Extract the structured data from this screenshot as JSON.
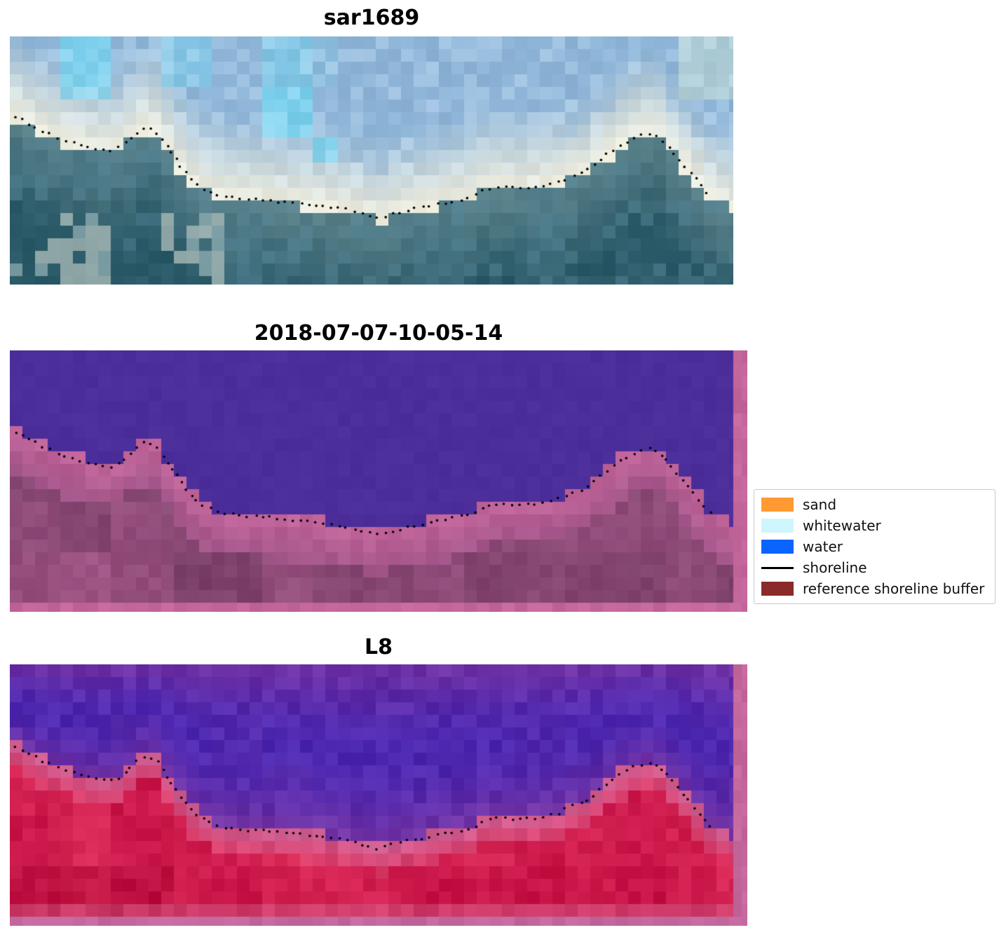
{
  "figure": {
    "background": "#ffffff",
    "panels": [
      {
        "id": "sar1689",
        "title": "sar1689",
        "colors": {
          "sky": "#8fb6d9",
          "cyan": "#74d6f2",
          "shore_band": "#f1efdf",
          "pale_green": "#d8ecd2",
          "water_shallow": "#6f949b",
          "water_deep": "#2c5b69",
          "water_mid": "#47788a",
          "light_patch": "#c7cfc6"
        }
      },
      {
        "id": "classified",
        "title": "2018-07-07-10-05-14",
        "colors": {
          "water_class": "#4c2e9b",
          "buffer_pink": "#c0649a",
          "buffer_mid": "#a3568a",
          "land_mid": "#96507f",
          "land_dark": "#7b4069",
          "light_corner": "#b86296",
          "frame": "#c4679c"
        }
      },
      {
        "id": "l8",
        "title": "L8",
        "colors": {
          "purple_top": "#7232a4",
          "blue_deep": "#4726b2",
          "purple_mid": "#5e2ba6",
          "purple_low": "#8c4ab0",
          "pink_band": "#d05f92",
          "pink_mid": "#da3a66",
          "red_mid": "#da2a58",
          "red_deep": "#c41145",
          "red_dark": "#b30a38",
          "bottom_pink": "#d4648f",
          "frame": "#c4679c"
        }
      }
    ],
    "legend": {
      "items": [
        {
          "label": "sand",
          "swatch": "patch",
          "color": "#ff9a33"
        },
        {
          "label": "whitewater",
          "swatch": "patch",
          "color": "#cdf6ff"
        },
        {
          "label": "water",
          "swatch": "patch",
          "color": "#0a64ff"
        },
        {
          "label": "shoreline",
          "swatch": "line",
          "color": "#000000"
        },
        {
          "label": "reference shoreline buffer",
          "swatch": "patch",
          "color": "#8b2a2a"
        }
      ]
    },
    "shoreline": [
      [
        0.0,
        0.31
      ],
      [
        0.01,
        0.325
      ],
      [
        0.04,
        0.375
      ],
      [
        0.065,
        0.405
      ],
      [
        0.09,
        0.43
      ],
      [
        0.115,
        0.455
      ],
      [
        0.14,
        0.46
      ],
      [
        0.155,
        0.445
      ],
      [
        0.17,
        0.4
      ],
      [
        0.185,
        0.368
      ],
      [
        0.2,
        0.372
      ],
      [
        0.215,
        0.43
      ],
      [
        0.235,
        0.52
      ],
      [
        0.255,
        0.59
      ],
      [
        0.275,
        0.628
      ],
      [
        0.3,
        0.648
      ],
      [
        0.33,
        0.658
      ],
      [
        0.36,
        0.663
      ],
      [
        0.395,
        0.672
      ],
      [
        0.43,
        0.682
      ],
      [
        0.465,
        0.698
      ],
      [
        0.495,
        0.718
      ],
      [
        0.51,
        0.733
      ],
      [
        0.525,
        0.718
      ],
      [
        0.55,
        0.7
      ],
      [
        0.58,
        0.685
      ],
      [
        0.61,
        0.666
      ],
      [
        0.64,
        0.65
      ],
      [
        0.655,
        0.616
      ],
      [
        0.68,
        0.61
      ],
      [
        0.705,
        0.614
      ],
      [
        0.73,
        0.608
      ],
      [
        0.755,
        0.594
      ],
      [
        0.775,
        0.566
      ],
      [
        0.795,
        0.548
      ],
      [
        0.815,
        0.5
      ],
      [
        0.835,
        0.455
      ],
      [
        0.855,
        0.418
      ],
      [
        0.875,
        0.395
      ],
      [
        0.89,
        0.388
      ],
      [
        0.905,
        0.428
      ],
      [
        0.92,
        0.478
      ],
      [
        0.935,
        0.528
      ],
      [
        0.95,
        0.582
      ],
      [
        0.965,
        0.632
      ],
      [
        0.978,
        0.658
      ],
      [
        1.0,
        0.69
      ]
    ]
  },
  "chart_data": {
    "type": "heatmap",
    "title": "",
    "panels": [
      {
        "title": "sar1689",
        "content": "pixelated satellite crop, light blue/cyan water above, dark teal land below, dotted detected shoreline"
      },
      {
        "title": "2018-07-07-10-05-14",
        "content": "classified crop, purple water class above, pink reference shoreline buffer below, dotted detected shoreline"
      },
      {
        "title": "L8",
        "content": "Landsat-8 false colour crop, purple water above, red land below with pink buffer, dotted detected shoreline"
      }
    ],
    "legend_entries": [
      "sand",
      "whitewater",
      "water",
      "shoreline",
      "reference shoreline buffer"
    ],
    "legend_position": "center right",
    "shoreline_path_normalized": [
      [
        0.0,
        0.31
      ],
      [
        0.04,
        0.375
      ],
      [
        0.09,
        0.43
      ],
      [
        0.14,
        0.46
      ],
      [
        0.185,
        0.368
      ],
      [
        0.235,
        0.52
      ],
      [
        0.3,
        0.648
      ],
      [
        0.395,
        0.672
      ],
      [
        0.465,
        0.698
      ],
      [
        0.51,
        0.733
      ],
      [
        0.58,
        0.685
      ],
      [
        0.655,
        0.616
      ],
      [
        0.73,
        0.608
      ],
      [
        0.795,
        0.548
      ],
      [
        0.855,
        0.418
      ],
      [
        0.89,
        0.388
      ],
      [
        0.935,
        0.528
      ],
      [
        0.978,
        0.658
      ]
    ]
  }
}
